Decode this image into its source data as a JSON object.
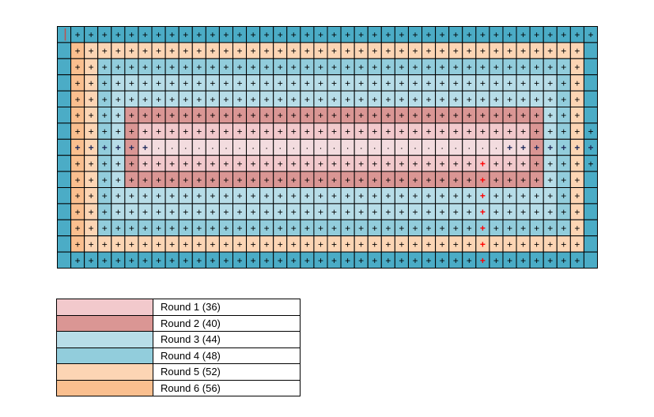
{
  "colors": {
    "r1": "#f2c9cc",
    "r1_center": "#f3dcdf",
    "r2": "#da9694",
    "r3": "#b7dde8",
    "r4": "#92cddc",
    "r5": "#fcd5b4",
    "r6": "#fabf8f",
    "edge": "#4bacc6",
    "mark_red": "#ff0000",
    "mark_dark": "#1f2a5a",
    "corner_mark": "#c0504d"
  },
  "grid": {
    "cols": 40,
    "rows": 15
  },
  "legend": [
    {
      "label": "Round 1 (36)",
      "color": "#f2c9cc"
    },
    {
      "label": "Round 2 (40)",
      "color": "#da9694"
    },
    {
      "label": "Round 3 (44)",
      "color": "#b7dde8"
    },
    {
      "label": "Round 4 (48)",
      "color": "#92cddc"
    },
    {
      "label": "Round 5 (52)",
      "color": "#fcd5b4"
    },
    {
      "label": "Round 6 (56)",
      "color": "#fabf8f"
    }
  ]
}
